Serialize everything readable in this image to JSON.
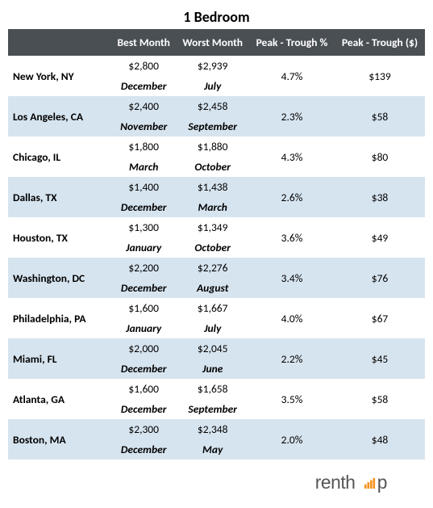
{
  "title": "1 Bedroom",
  "columns": {
    "city": "",
    "best": "Best Month",
    "worst": "Worst Month",
    "pct": "Peak - Trough %",
    "dollar": "Peak - Trough ($)"
  },
  "rows": [
    {
      "city": "New York, NY",
      "best_val": "$2,800",
      "best_month": "December",
      "worst_val": "$2,939",
      "worst_month": "July",
      "pct": "4.7%",
      "dollar": "$139"
    },
    {
      "city": "Los Angeles, CA",
      "best_val": "$2,400",
      "best_month": "November",
      "worst_val": "$2,458",
      "worst_month": "September",
      "pct": "2.3%",
      "dollar": "$58"
    },
    {
      "city": "Chicago, IL",
      "best_val": "$1,800",
      "best_month": "March",
      "worst_val": "$1,880",
      "worst_month": "October",
      "pct": "4.3%",
      "dollar": "$80"
    },
    {
      "city": "Dallas, TX",
      "best_val": "$1,400",
      "best_month": "December",
      "worst_val": "$1,438",
      "worst_month": "March",
      "pct": "2.6%",
      "dollar": "$38"
    },
    {
      "city": "Houston, TX",
      "best_val": "$1,300",
      "best_month": "January",
      "worst_val": "$1,349",
      "worst_month": "October",
      "pct": "3.6%",
      "dollar": "$49"
    },
    {
      "city": "Washington, DC",
      "best_val": "$2,200",
      "best_month": "December",
      "worst_val": "$2,276",
      "worst_month": "August",
      "pct": "3.4%",
      "dollar": "$76"
    },
    {
      "city": "Philadelphia, PA",
      "best_val": "$1,600",
      "best_month": "January",
      "worst_val": "$1,667",
      "worst_month": "July",
      "pct": "4.0%",
      "dollar": "$67"
    },
    {
      "city": "Miami, FL",
      "best_val": "$2,000",
      "best_month": "December",
      "worst_val": "$2,045",
      "worst_month": "June",
      "pct": "2.2%",
      "dollar": "$45"
    },
    {
      "city": "Atlanta, GA",
      "best_val": "$1,600",
      "best_month": "December",
      "worst_val": "$1,658",
      "worst_month": "September",
      "pct": "3.5%",
      "dollar": "$58"
    },
    {
      "city": "Boston, MA",
      "best_val": "$2,300",
      "best_month": "December",
      "worst_val": "$2,348",
      "worst_month": "May",
      "pct": "2.0%",
      "dollar": "$48"
    }
  ],
  "logo_text": "renthop",
  "styling": {
    "header_bg": "#4a4f54",
    "header_color": "#ffffff",
    "alt_row_bg": "#d6e4ef",
    "base_bg": "#ffffff",
    "font": "Calibri, Arial, sans-serif",
    "title_fontsize": 18,
    "body_fontsize": 13.5,
    "logo_color": "#555555",
    "logo_signal_color": "#f7931e"
  }
}
